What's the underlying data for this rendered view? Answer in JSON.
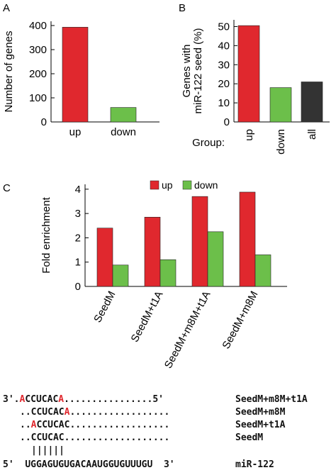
{
  "colors": {
    "up": "#e0282e",
    "down": "#6cbf4a",
    "all": "#333333",
    "axis": "#000000",
    "highlight": "#e0282e"
  },
  "panels": {
    "a": "A",
    "b": "B",
    "c": "C"
  },
  "chart_data": [
    {
      "panel": "A",
      "type": "bar",
      "categories": [
        "up",
        "down"
      ],
      "values": [
        393,
        60
      ],
      "ylabel": "Number of genes",
      "ylim": [
        0,
        400
      ],
      "yticks": [
        0,
        100,
        200,
        300,
        400
      ],
      "grid": false
    },
    {
      "panel": "B",
      "type": "bar",
      "x_prefix": "Group:",
      "categories": [
        "up",
        "down",
        "all"
      ],
      "values": [
        50.5,
        18,
        21
      ],
      "ylabel_line1": "Genes with",
      "ylabel_line2": "miR-122 seed (%)",
      "ylim": [
        0,
        55
      ],
      "yticks": [
        0,
        10,
        20,
        30,
        40,
        50
      ],
      "grid": false
    },
    {
      "panel": "C",
      "type": "bar",
      "categories": [
        "SeedM",
        "SeedM+t1A",
        "SeedM+m8M+t1A",
        "SeedM+m8M"
      ],
      "series": [
        {
          "name": "up",
          "values": [
            2.4,
            2.85,
            3.7,
            3.88
          ]
        },
        {
          "name": "down",
          "values": [
            0.88,
            1.1,
            2.25,
            1.3
          ]
        }
      ],
      "ylabel": "Fold enrichment",
      "ylim": [
        0,
        4.2
      ],
      "yticks": [
        0,
        1,
        2,
        3,
        4
      ],
      "legend_position": "top",
      "grid": false
    }
  ],
  "alignment": {
    "rows": [
      {
        "prefix": "3'.",
        "red1": "A",
        "mid": "CCUCAC",
        "red2": "A",
        "tail": "................5'",
        "label": "SeedM+m8M+t1A"
      },
      {
        "prefix": "..",
        "red1": "",
        "mid": "CCUCAC",
        "red2": "A",
        "tail": "..................",
        "label": "SeedM+m8M"
      },
      {
        "prefix": "..",
        "red1": "A",
        "mid": "CCUCAC",
        "red2": "",
        "tail": "..................",
        "label": "SeedM+t1A"
      },
      {
        "prefix": "..",
        "red1": "",
        "mid": "CCUCAC",
        "red2": "",
        "tail": "...................",
        "label": "SeedM"
      }
    ],
    "pairing": "||||||",
    "mirna": {
      "prefix": "5'",
      "sequence": "UGGAGUGUGACAAUGGUGUUUGU",
      "suffix": "3'",
      "label": "miR-122"
    }
  }
}
